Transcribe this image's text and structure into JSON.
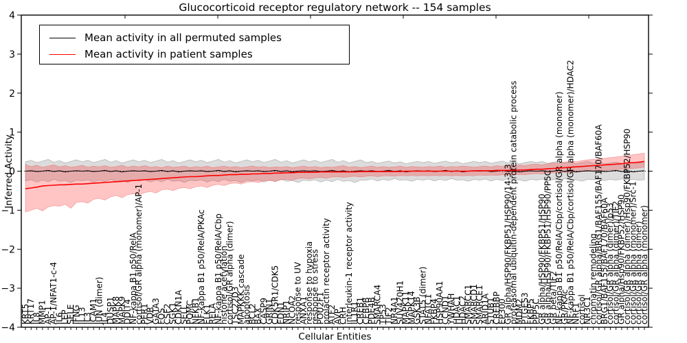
{
  "figure": {
    "window_title": "Glucocorticoid receptor regulatory network -- 154 samples"
  },
  "chart_data": {
    "type": "line",
    "title": "Glucocorticoid receptor regulatory network -- 154 samples",
    "xlabel": "Cellular Entities",
    "ylabel": "Inferred Activity",
    "ylim": [
      -4,
      4
    ],
    "yticks": [
      4,
      3,
      2,
      1,
      0,
      -1,
      -2,
      -3,
      -4
    ],
    "grid": false,
    "legend_position": "upper left",
    "colors": {
      "permuted_line": "#000000",
      "patient_line": "#ff0000",
      "permuted_band": "rgba(128,128,128,0.28)",
      "patient_band": "rgba(255,40,40,0.27)",
      "permuted_band_edge": "rgba(100,100,100,0.45)",
      "patient_band_edge": "rgba(235,100,100,0.6)",
      "axis": "#000000"
    },
    "categories": [
      "KRT5",
      "KRT17",
      "IL8",
      "MMP1",
      "AP-1",
      "AP-1/NFAT1-c-4",
      "IL6",
      "LEP",
      "SELE",
      "IFNG",
      "IL13",
      "IL3",
      "ICAM1",
      "JUN (dimer)",
      "IL4",
      "DUSP1",
      "MAPK8",
      "MAPK9",
      "DDIT4",
      "NF-kappa B1 p50/RelA",
      "cortisol/GR alpha (monomer)/AP-1",
      "PER1",
      "VDR",
      "GATA3",
      "FOS",
      "CSF2",
      "SGK1",
      "CDKN1A",
      "SELL",
      "POMC",
      "NFKB1",
      "NF-kappa B1 p50/RelA/PKAc",
      "ELK1",
      "RELA",
      "NF-kappa B1 p50/RelA/Cbp",
      "histone acetylation",
      "cortisol/GR alpha (dimer)",
      "TSC22D3",
      "MAPKKK cascade",
      "apoptosis",
      "BCL2",
      "BAX",
      "CASP9",
      "GRIN1",
      "CDK5R1/CDK5",
      "EDN1",
      "NRIP1",
      "NCOA2",
      "response to UV",
      "ANXA1",
      "response to hypoxia",
      "response to stress",
      "POU2F1",
      "prolactin receptor activity",
      "ATF2",
      "AVP",
      "CRH",
      "interleukin-1 receptor activity",
      "IL1R1",
      "CREB1",
      "CEBPB",
      "PDE4B",
      "SMARCA4",
      "TP53",
      "TIF2",
      "NR4A1",
      "SUV420H1",
      "MAPK11",
      "MAPK14",
      "GSK3B",
      "STAT5 (dimer)",
      "NFATC1",
      "FKBP4",
      "HSP90AA1",
      "CCND1",
      "YWHAH",
      "HDAC1",
      "HDAC2",
      "SMARCC1",
      "SMARCD1",
      "SMARCE1",
      "ARID1A",
      "STUB1",
      "CREBBP",
      "EP300",
      "GR alpha/HSP90/FKBP51/HSP90/14-3-3",
      "proteasomal ubiquitin-dependent protein catabolic process",
      "MDM2",
      "PTGES3",
      "FKBP5",
      "PPP5C",
      "GR alpha/HSP90/FKBP51/HSP90",
      "GR alpha/HSP90/FKBP51/HSP90/PP5C",
      "GR beta/TIF2",
      "NF-kappa B1 p50/RelA/Cbp/cortisol/GR alpha (monomer)",
      "GR/PKAc",
      "NF-kappa B1 p50/RelA/Cbp/cortisol/GR alpha (monomer)/HDAC2",
      "NRF1",
      "cortisol",
      "NR3C1",
      "chromatin remodeling",
      "cortisol/GR alpha/BRG1/BAF155/BAF170/BAF60A",
      "BRG1/BAF155/BAF170/BAF60A",
      "cortisol/GR alpha (dimer)/p53",
      "cortisol/GR alpha (dimer)/TIF2",
      "GR alpha/Hsp90/FKBP52/HSP90",
      "cortisol/GR alpha (dimer)/Hsp90/FKBP52/HSP90",
      "cortisol/GR alpha (monomer)/Src-1",
      "cortisol/GR alpha (dimer)",
      "cortisol/GR alpha (monomer)"
    ],
    "series": [
      {
        "name": "Mean activity in all permuted samples",
        "color": "#000000",
        "values": [
          0.0,
          0.01,
          -0.01,
          0.0,
          0.02,
          -0.01,
          0.01,
          -0.02,
          0.0,
          0.01,
          0.0,
          0.01,
          -0.01,
          0.0,
          0.02,
          -0.01,
          0.01,
          -0.02,
          0.0,
          0.01,
          0.0,
          0.01,
          -0.01,
          0.0,
          0.02,
          -0.01,
          0.01,
          -0.02,
          0.0,
          0.01,
          0.0,
          0.01,
          -0.01,
          0.0,
          0.02,
          -0.01,
          0.01,
          -0.02,
          0.0,
          0.01,
          0.0,
          0.01,
          -0.01,
          0.0,
          0.02,
          -0.01,
          0.01,
          -0.02,
          0.0,
          0.01,
          0.0,
          0.01,
          -0.01,
          0.0,
          0.02,
          -0.01,
          0.01,
          -0.02,
          0.0,
          0.01,
          0.0,
          0.01,
          -0.01,
          0.0,
          0.02,
          -0.01,
          0.01,
          -0.02,
          0.0,
          0.01,
          0.0,
          0.01,
          -0.01,
          0.0,
          0.02,
          -0.01,
          0.01,
          -0.02,
          0.0,
          0.01,
          0.0,
          0.01,
          -0.01,
          0.0,
          0.02,
          -0.01,
          0.01,
          -0.02,
          0.0,
          0.01,
          0.0,
          0.01,
          -0.01,
          0.0,
          0.02,
          -0.01,
          0.01,
          -0.02,
          0.0,
          0.01,
          0.0,
          0.01,
          -0.01,
          0.0,
          0.02,
          -0.01,
          0.01,
          -0.02,
          0.0,
          0.01
        ],
        "band_upper": [
          0.24,
          0.28,
          0.22,
          0.26,
          0.3,
          0.23,
          0.27,
          0.21,
          0.25,
          0.29,
          0.24,
          0.28,
          0.22,
          0.26,
          0.3,
          0.23,
          0.27,
          0.21,
          0.25,
          0.29,
          0.24,
          0.28,
          0.22,
          0.26,
          0.3,
          0.23,
          0.27,
          0.21,
          0.25,
          0.29,
          0.24,
          0.28,
          0.22,
          0.26,
          0.3,
          0.23,
          0.27,
          0.21,
          0.25,
          0.29,
          0.24,
          0.28,
          0.22,
          0.26,
          0.3,
          0.23,
          0.27,
          0.21,
          0.25,
          0.29,
          0.24,
          0.28,
          0.22,
          0.26,
          0.3,
          0.23,
          0.27,
          0.21,
          0.25,
          0.29,
          0.22,
          0.25,
          0.2,
          0.23,
          0.26,
          0.21,
          0.24,
          0.19,
          0.22,
          0.25,
          0.22,
          0.25,
          0.2,
          0.23,
          0.26,
          0.21,
          0.24,
          0.19,
          0.22,
          0.25,
          0.22,
          0.25,
          0.2,
          0.23,
          0.26,
          0.21,
          0.24,
          0.19,
          0.22,
          0.25,
          0.22,
          0.25,
          0.2,
          0.23,
          0.26,
          0.21,
          0.24,
          0.19,
          0.22,
          0.25,
          0.2,
          0.22,
          0.19,
          0.21,
          0.23,
          0.2,
          0.22,
          0.19,
          0.21,
          0.22
        ],
        "band_lower": [
          -0.25,
          -0.22,
          -0.28,
          -0.23,
          -0.27,
          -0.21,
          -0.26,
          -0.24,
          -0.29,
          -0.23,
          -0.25,
          -0.22,
          -0.28,
          -0.23,
          -0.27,
          -0.21,
          -0.26,
          -0.24,
          -0.29,
          -0.23,
          -0.25,
          -0.22,
          -0.28,
          -0.23,
          -0.27,
          -0.21,
          -0.26,
          -0.24,
          -0.29,
          -0.23,
          -0.25,
          -0.22,
          -0.28,
          -0.23,
          -0.27,
          -0.21,
          -0.26,
          -0.24,
          -0.29,
          -0.23,
          -0.25,
          -0.22,
          -0.28,
          -0.23,
          -0.27,
          -0.21,
          -0.26,
          -0.24,
          -0.29,
          -0.23,
          -0.25,
          -0.22,
          -0.28,
          -0.23,
          -0.27,
          -0.21,
          -0.26,
          -0.24,
          -0.29,
          -0.23,
          -0.23,
          -0.2,
          -0.25,
          -0.21,
          -0.24,
          -0.19,
          -0.23,
          -0.22,
          -0.26,
          -0.21,
          -0.23,
          -0.2,
          -0.25,
          -0.21,
          -0.24,
          -0.19,
          -0.23,
          -0.22,
          -0.26,
          -0.21,
          -0.23,
          -0.2,
          -0.25,
          -0.21,
          -0.24,
          -0.19,
          -0.23,
          -0.22,
          -0.26,
          -0.21,
          -0.23,
          -0.2,
          -0.25,
          -0.21,
          -0.24,
          -0.19,
          -0.23,
          -0.22,
          -0.26,
          -0.21,
          -0.22,
          -0.2,
          -0.24,
          -0.21,
          -0.23,
          -0.2,
          -0.22,
          -0.21,
          -0.23,
          -0.22
        ]
      },
      {
        "name": "Mean activity in patient samples",
        "color": "#ff0000",
        "values": [
          -0.45,
          -0.43,
          -0.41,
          -0.38,
          -0.37,
          -0.36,
          -0.35,
          -0.35,
          -0.34,
          -0.33,
          -0.33,
          -0.32,
          -0.31,
          -0.3,
          -0.29,
          -0.28,
          -0.27,
          -0.26,
          -0.25,
          -0.24,
          -0.23,
          -0.22,
          -0.21,
          -0.2,
          -0.19,
          -0.18,
          -0.17,
          -0.16,
          -0.15,
          -0.14,
          -0.14,
          -0.13,
          -0.12,
          -0.11,
          -0.11,
          -0.1,
          -0.09,
          -0.09,
          -0.08,
          -0.08,
          -0.07,
          -0.07,
          -0.06,
          -0.06,
          -0.05,
          -0.05,
          -0.04,
          -0.04,
          -0.03,
          -0.03,
          -0.03,
          -0.03,
          -0.02,
          -0.02,
          -0.02,
          -0.02,
          -0.02,
          -0.02,
          -0.02,
          -0.01,
          -0.01,
          -0.01,
          -0.01,
          -0.01,
          -0.01,
          -0.01,
          -0.01,
          0.0,
          0.0,
          0.0,
          0.0,
          0.0,
          0.0,
          0.0,
          0.0,
          0.0,
          0.0,
          0.0,
          0.0,
          0.01,
          0.01,
          0.01,
          0.01,
          0.02,
          0.02,
          0.02,
          0.02,
          0.03,
          0.03,
          0.04,
          0.05,
          0.05,
          0.06,
          0.07,
          0.08,
          0.09,
          0.1,
          0.11,
          0.12,
          0.13,
          0.14,
          0.15,
          0.16,
          0.17,
          0.18,
          0.19,
          0.21,
          0.22,
          0.23,
          0.25
        ],
        "band_upper": [
          0.17,
          0.12,
          0.15,
          0.1,
          0.13,
          0.16,
          0.11,
          0.14,
          0.1,
          0.12,
          0.15,
          0.1,
          0.13,
          0.11,
          0.14,
          0.1,
          0.12,
          0.15,
          0.1,
          0.13,
          0.11,
          0.14,
          0.1,
          0.12,
          0.09,
          0.13,
          0.1,
          0.11,
          0.13,
          0.09,
          0.12,
          0.1,
          0.13,
          0.09,
          0.11,
          0.13,
          0.1,
          0.12,
          0.09,
          0.11,
          0.13,
          0.1,
          0.12,
          0.09,
          0.11,
          0.1,
          0.12,
          0.09,
          0.11,
          0.13,
          0.1,
          0.12,
          0.09,
          0.11,
          0.1,
          0.12,
          0.14,
          0.1,
          0.12,
          0.09,
          0.11,
          0.13,
          0.1,
          0.12,
          0.1,
          0.11,
          0.13,
          0.1,
          0.12,
          0.11,
          0.1,
          0.12,
          0.11,
          0.13,
          0.1,
          0.12,
          0.11,
          0.13,
          0.12,
          0.1,
          0.12,
          0.13,
          0.11,
          0.14,
          0.12,
          0.15,
          0.13,
          0.16,
          0.14,
          0.17,
          0.18,
          0.16,
          0.19,
          0.21,
          0.2,
          0.23,
          0.25,
          0.24,
          0.27,
          0.29,
          0.3,
          0.32,
          0.33,
          0.35,
          0.36,
          0.38,
          0.4,
          0.42,
          0.44,
          0.46
        ],
        "band_lower": [
          -1.05,
          -1.0,
          -0.95,
          -1.02,
          -0.92,
          -0.88,
          -0.9,
          -0.85,
          -0.95,
          -0.8,
          -0.78,
          -0.82,
          -0.72,
          -0.7,
          -0.74,
          -0.66,
          -0.62,
          -0.68,
          -0.6,
          -0.58,
          -0.6,
          -0.55,
          -0.52,
          -0.56,
          -0.48,
          -0.46,
          -0.5,
          -0.44,
          -0.42,
          -0.45,
          -0.4,
          -0.38,
          -0.42,
          -0.36,
          -0.34,
          -0.37,
          -0.32,
          -0.3,
          -0.33,
          -0.28,
          -0.27,
          -0.29,
          -0.25,
          -0.24,
          -0.26,
          -0.22,
          -0.21,
          -0.23,
          -0.19,
          -0.18,
          -0.2,
          -0.17,
          -0.16,
          -0.18,
          -0.15,
          -0.14,
          -0.16,
          -0.14,
          -0.13,
          -0.15,
          -0.13,
          -0.12,
          -0.14,
          -0.12,
          -0.12,
          -0.13,
          -0.11,
          -0.12,
          -0.11,
          -0.12,
          -0.11,
          -0.12,
          -0.11,
          -0.12,
          -0.11,
          -0.12,
          -0.11,
          -0.12,
          -0.11,
          -0.12,
          -0.1,
          -0.11,
          -0.1,
          -0.11,
          -0.09,
          -0.1,
          -0.09,
          -0.08,
          -0.09,
          -0.07,
          -0.06,
          -0.07,
          -0.05,
          -0.04,
          -0.05,
          -0.03,
          -0.02,
          -0.03,
          -0.01,
          0.0,
          0.01,
          0.02,
          0.02,
          0.03,
          0.04,
          0.05,
          0.06,
          0.07,
          0.08,
          0.1
        ]
      }
    ]
  }
}
